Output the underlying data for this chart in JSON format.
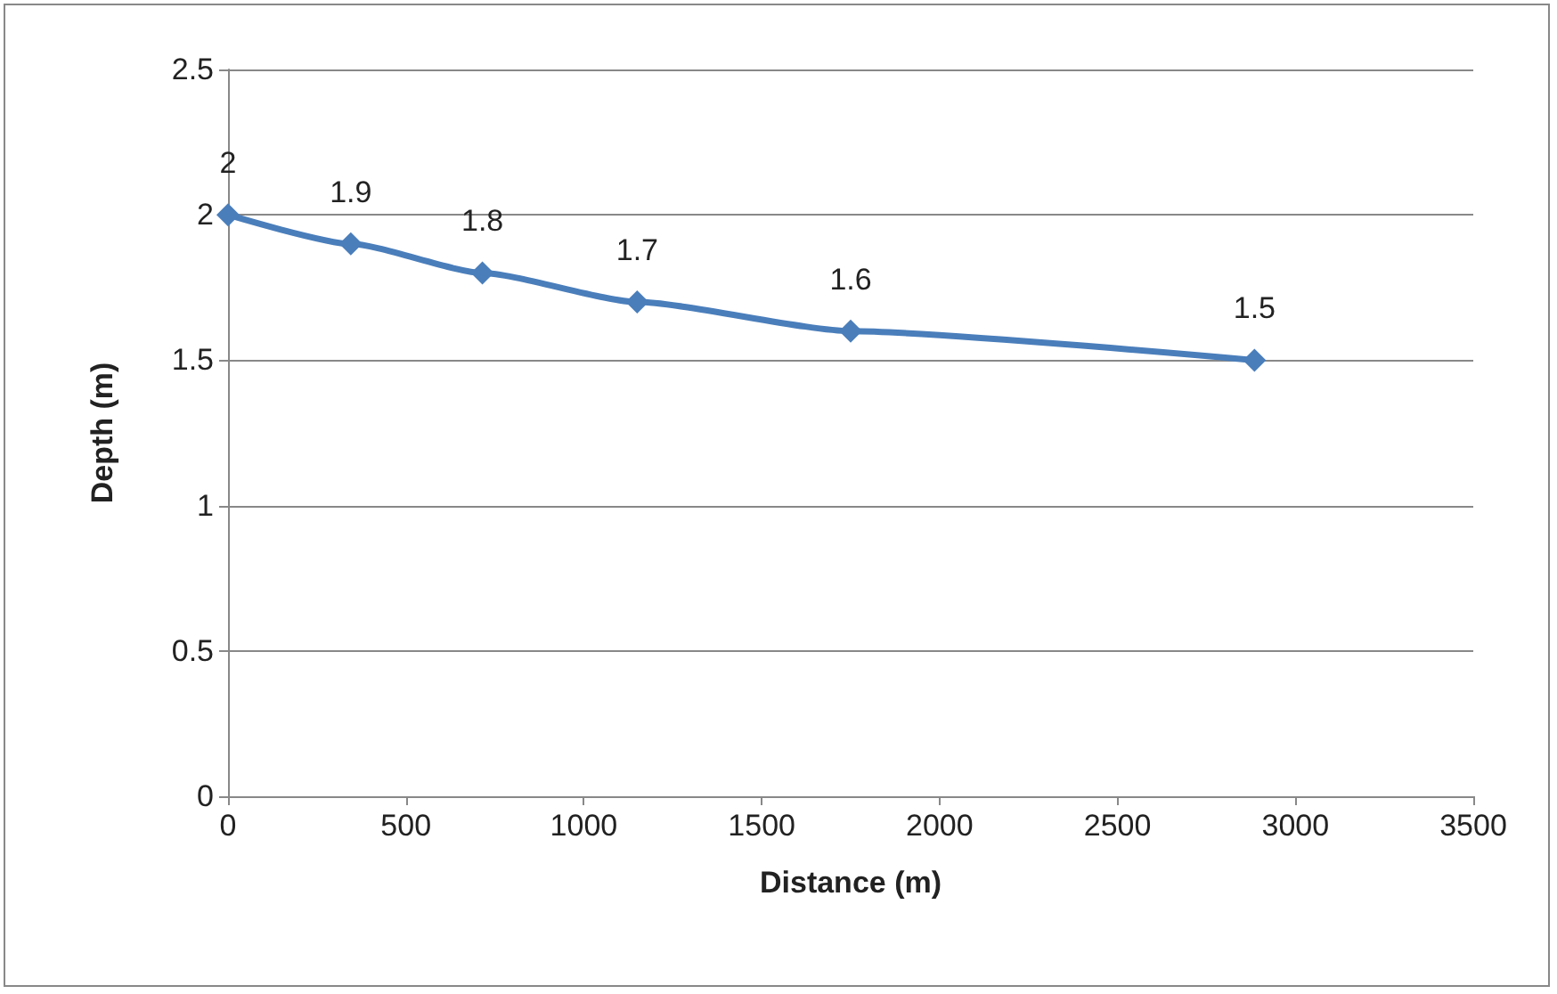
{
  "chart_data": {
    "type": "line",
    "xlabel": "Distance (m)",
    "ylabel": "Depth (m)",
    "x": [
      0,
      345,
      715,
      1150,
      1750,
      2885
    ],
    "series": [
      {
        "color": "#4a7ebb",
        "values": [
          2,
          1.9,
          1.8,
          1.7,
          1.6,
          1.5
        ]
      }
    ],
    "xlim": [
      0,
      3500
    ],
    "xticks": [
      0,
      500,
      1000,
      1500,
      2000,
      2500,
      3000,
      3500
    ],
    "ylim": [
      0,
      2.5
    ],
    "yticks": [
      0,
      0.5,
      1,
      1.5,
      2,
      2.5
    ],
    "grid": "y",
    "marker": "diamond",
    "line_style": "solid",
    "data_labels": true
  }
}
